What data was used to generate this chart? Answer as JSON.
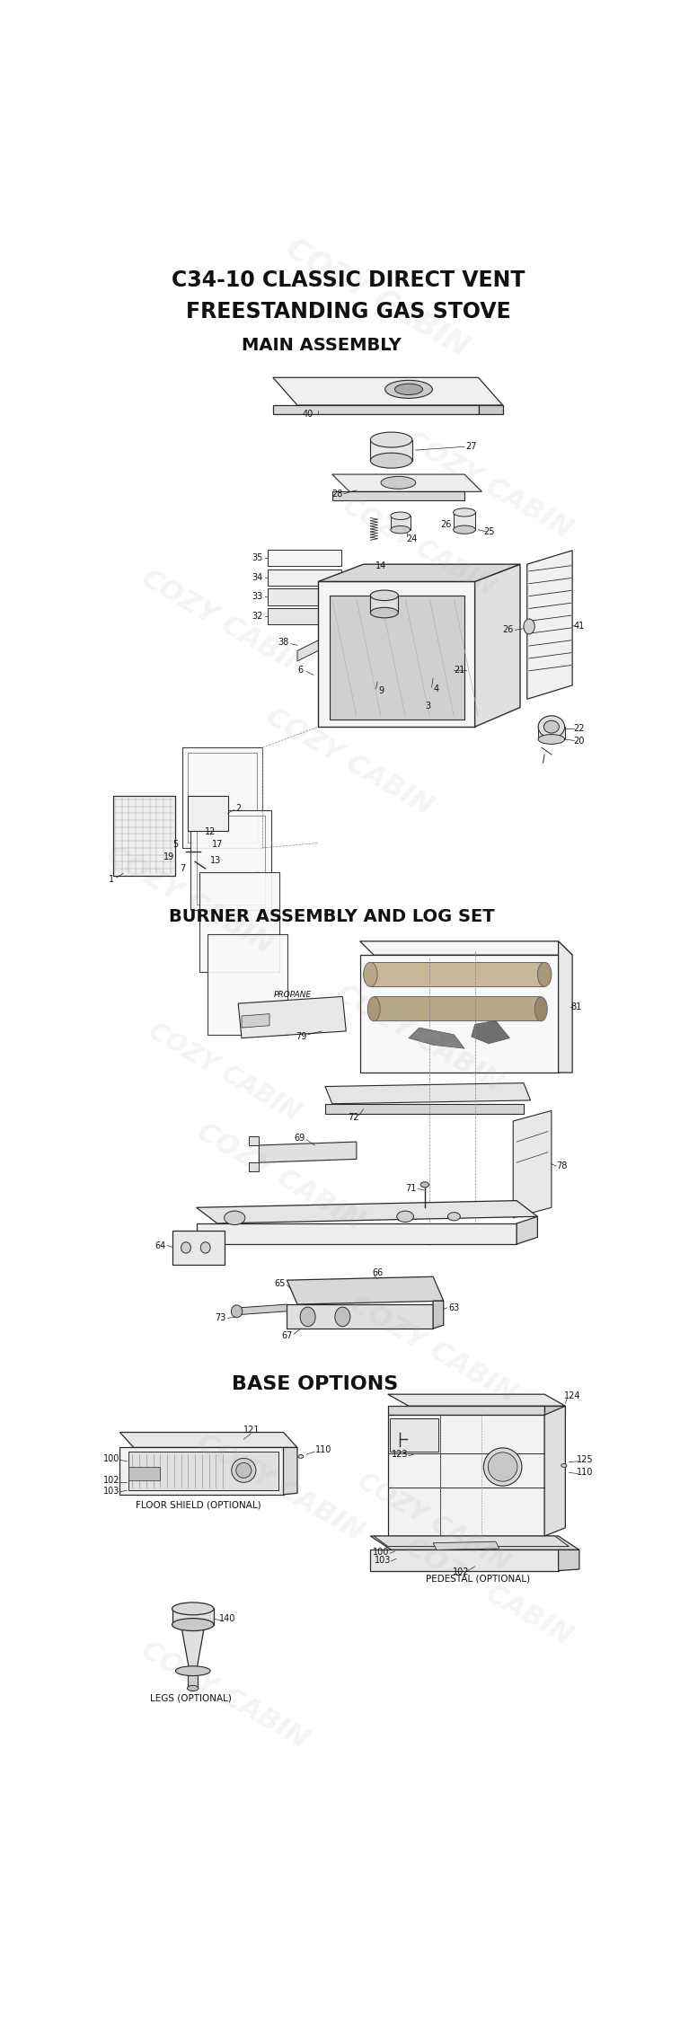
{
  "title_line1": "C34-10 CLASSIC DIRECT VENT",
  "title_line2": "FREESTANDING GAS STOVE",
  "section1": "MAIN ASSEMBLY",
  "section2": "BURNER ASSEMBLY AND LOG SET",
  "section3": "BASE OPTIONS",
  "bg_color": "#ffffff",
  "lc": "#2a2a2a",
  "fig_width": 7.57,
  "fig_height": 22.51,
  "dpi": 100
}
